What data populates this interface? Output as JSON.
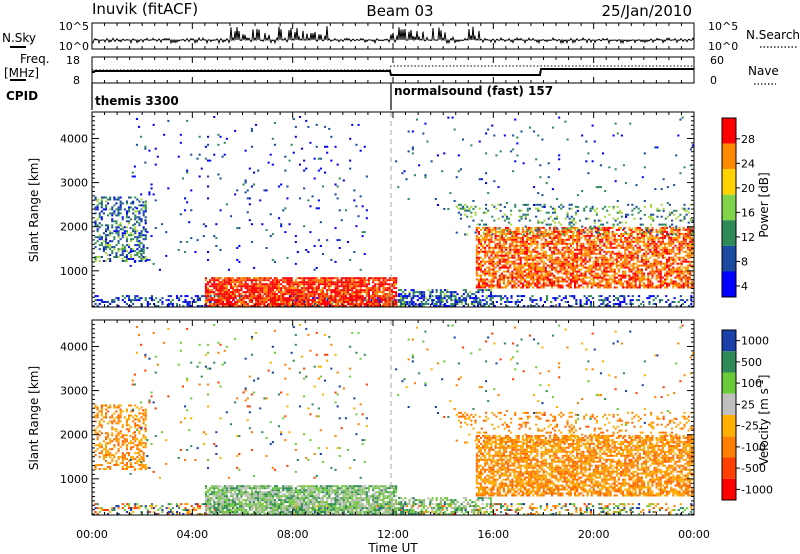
{
  "header": {
    "station": "Inuvik (fitACF)",
    "beam": "Beam 03",
    "date": "25/Jan/2010"
  },
  "top_panels": {
    "nsky_label": "N.Sky",
    "nsky_ticks": [
      "10^5",
      "10^0"
    ],
    "nsearch_label": "N.Search",
    "nsearch_ticks": [
      "10^5",
      "10^0"
    ],
    "freq_label_1": "Freq.",
    "freq_label_2": "[MHz]",
    "freq_ticks": [
      "18",
      "8"
    ],
    "nave_label": "Nave",
    "nave_ticks": [
      "60",
      "0"
    ],
    "cpid_label": "CPID",
    "cpid_segments": [
      {
        "name": "themis 3300",
        "start_hour": 0
      },
      {
        "name": "normalsound (fast) 157",
        "start_hour": 12
      }
    ]
  },
  "chart_data": [
    {
      "type": "heatmap",
      "quantity": "power",
      "xlabel": "",
      "ylabel": "Slant Range [km]",
      "xlim": [
        0,
        24
      ],
      "ylim": [
        180,
        4600
      ],
      "yticks": [
        "1000",
        "2000",
        "3000",
        "4000"
      ],
      "colorbar_label": "Power [dB]",
      "colorbar_ticks": [
        "28",
        "24",
        "20",
        "16",
        "12",
        "8",
        "4"
      ],
      "colorbar_colors": [
        "#ff0000",
        "#ff8a00",
        "#ffd200",
        "#7fd44a",
        "#2e8b57",
        "#1a4ba0",
        "#0000ff"
      ]
    },
    {
      "type": "heatmap",
      "quantity": "velocity",
      "xlabel": "Time UT",
      "ylabel": "Slant Range [km]",
      "xlim": [
        0,
        24
      ],
      "ylim": [
        180,
        4600
      ],
      "xticks": [
        "00:00",
        "04:00",
        "08:00",
        "12:00",
        "16:00",
        "20:00",
        "00:00"
      ],
      "yticks": [
        "1000",
        "2000",
        "3000",
        "4000"
      ],
      "colorbar_label": "Velocity [m s",
      "colorbar_label_sup": "-1",
      "colorbar_label_end": "]",
      "colorbar_ticks": [
        "1000",
        "500",
        "100",
        "25",
        "-25",
        "-100",
        "-500",
        "-1000"
      ],
      "colorbar_colors": [
        "#1a3fa8",
        "#2e8b57",
        "#6bcc3a",
        "#c0c0c0",
        "#ffb000",
        "#ff8000",
        "#ff4000",
        "#ff0000"
      ]
    }
  ]
}
